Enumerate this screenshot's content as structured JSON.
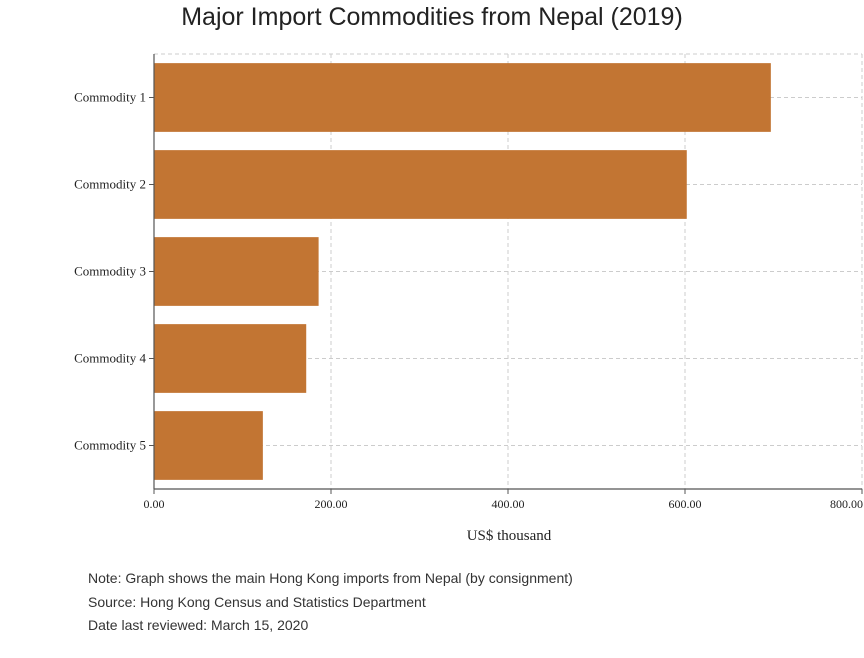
{
  "chart_data": {
    "type": "bar",
    "orientation": "horizontal",
    "title": "Major Import Commodities from Nepal (2019)",
    "xlabel": "US$ thousand",
    "ylabel": "",
    "categories": [
      "Commodity 1",
      "Commodity 2",
      "Commodity 3",
      "Commodity 4",
      "Commodity 5"
    ],
    "values": [
      697,
      602,
      186,
      172,
      123
    ],
    "xlim": [
      0,
      800
    ],
    "xticks": [
      "0.00",
      "200.00",
      "400.00",
      "600.00",
      "800.00"
    ],
    "grid": true,
    "bar_color": "#C27533",
    "grid_color": "#cccccc"
  },
  "notes": {
    "note": "Note: Graph shows the main Hong Kong imports from Nepal (by consignment)",
    "source": "Source: Hong Kong Census and Statistics Department",
    "reviewed": "Date last reviewed: March 15, 2020"
  }
}
